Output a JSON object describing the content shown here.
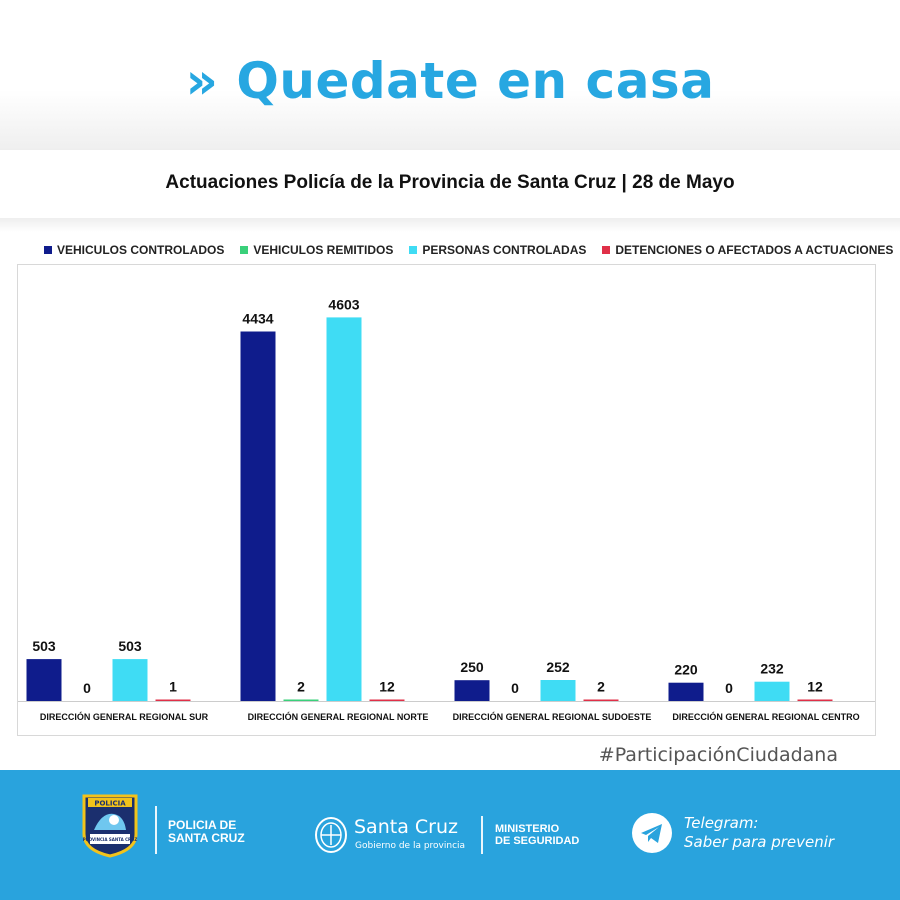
{
  "header": {
    "chevron": "»",
    "title": "Quedate en casa",
    "subtitle": "Actuaciones Policía de la Provincia de Santa Cruz | 28 de Mayo"
  },
  "chart_data": {
    "type": "bar",
    "title": "",
    "xlabel": "",
    "ylabel": "",
    "ylim": [
      0,
      4800
    ],
    "grid": false,
    "legend_position": "top",
    "categories": [
      "DIRECCIÓN GENERAL REGIONAL SUR",
      "DIRECCIÓN GENERAL REGIONAL NORTE",
      "DIRECCIÓN GENERAL REGIONAL SUDOESTE",
      "DIRECCIÓN GENERAL REGIONAL CENTRO"
    ],
    "series": [
      {
        "name": "VEHICULOS CONTROLADOS",
        "color": "#0f1c8c",
        "values": [
          503,
          4434,
          250,
          220
        ]
      },
      {
        "name": "VEHICULOS REMITIDOS",
        "color": "#3ad07a",
        "values": [
          0,
          2,
          0,
          0
        ]
      },
      {
        "name": "PERSONAS CONTROLADAS",
        "color": "#3fdcf4",
        "values": [
          503,
          4603,
          252,
          232
        ]
      },
      {
        "name": "DETENCIONES O AFECTADOS A ACTUACIONES",
        "color": "#e03048",
        "values": [
          1,
          12,
          2,
          12
        ]
      }
    ]
  },
  "footer": {
    "hashtag": "#ParticipaciónCiudadana",
    "badge_text": "POLICIA",
    "badge_sub": "PROVINCIA SANTA CRUZ",
    "police_line1": "POLICIA DE",
    "police_line2": "SANTA CRUZ",
    "gov_name": "Santa Cruz",
    "gov_sub": "Gobierno de la provincia",
    "ministry_line1": "MINISTERIO",
    "ministry_line2": "DE SEGURIDAD",
    "telegram_line1": "Telegram:",
    "telegram_line2": "Saber para prevenir"
  }
}
